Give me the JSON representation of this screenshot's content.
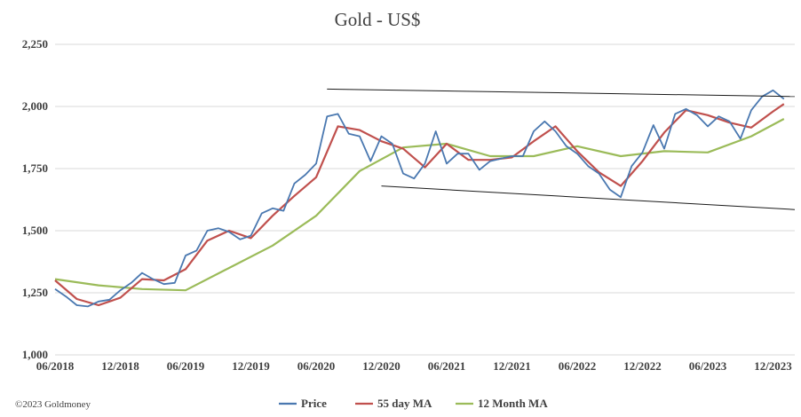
{
  "chart_data": {
    "type": "line",
    "title": "Gold - US$",
    "xlabel": "",
    "ylabel": "",
    "ylim": [
      1000,
      2250
    ],
    "y_ticks": [
      "1,000",
      "1,250",
      "1,500",
      "1,750",
      "2,000",
      "2,250"
    ],
    "x_tick_labels": [
      "06/2018",
      "12/2018",
      "06/2019",
      "12/2019",
      "06/2020",
      "12/2020",
      "06/2021",
      "12/2021",
      "06/2022",
      "12/2022",
      "06/2023",
      "12/2023"
    ],
    "x_range": [
      "2018-06",
      "2024-02"
    ],
    "grid": "horizontal",
    "legend_position": "bottom",
    "colors": {
      "price": "#4a78b0",
      "ma55": "#c0504d",
      "ma12m": "#9bbb59",
      "trendline": "#1a1a1a",
      "grid": "#d9d9d9"
    },
    "series": [
      {
        "name": "Price",
        "points": [
          [
            "2018-06",
            1265
          ],
          [
            "2018-07",
            1235
          ],
          [
            "2018-08",
            1200
          ],
          [
            "2018-09",
            1195
          ],
          [
            "2018-10",
            1215
          ],
          [
            "2018-11",
            1222
          ],
          [
            "2018-12",
            1260
          ],
          [
            "2019-01",
            1290
          ],
          [
            "2019-02",
            1330
          ],
          [
            "2019-03",
            1305
          ],
          [
            "2019-04",
            1285
          ],
          [
            "2019-05",
            1290
          ],
          [
            "2019-06",
            1400
          ],
          [
            "2019-07",
            1420
          ],
          [
            "2019-08",
            1500
          ],
          [
            "2019-09",
            1510
          ],
          [
            "2019-10",
            1495
          ],
          [
            "2019-11",
            1465
          ],
          [
            "2019-12",
            1480
          ],
          [
            "2020-01",
            1570
          ],
          [
            "2020-02",
            1590
          ],
          [
            "2020-03",
            1580
          ],
          [
            "2020-04",
            1690
          ],
          [
            "2020-05",
            1725
          ],
          [
            "2020-06",
            1770
          ],
          [
            "2020-07",
            1960
          ],
          [
            "2020-08",
            1970
          ],
          [
            "2020-09",
            1890
          ],
          [
            "2020-10",
            1880
          ],
          [
            "2020-11",
            1780
          ],
          [
            "2020-12",
            1880
          ],
          [
            "2021-01",
            1850
          ],
          [
            "2021-02",
            1730
          ],
          [
            "2021-03",
            1710
          ],
          [
            "2021-04",
            1770
          ],
          [
            "2021-05",
            1900
          ],
          [
            "2021-06",
            1770
          ],
          [
            "2021-07",
            1810
          ],
          [
            "2021-08",
            1810
          ],
          [
            "2021-09",
            1745
          ],
          [
            "2021-10",
            1780
          ],
          [
            "2021-11",
            1790
          ],
          [
            "2021-12",
            1800
          ],
          [
            "2022-01",
            1800
          ],
          [
            "2022-02",
            1900
          ],
          [
            "2022-03",
            1940
          ],
          [
            "2022-04",
            1900
          ],
          [
            "2022-05",
            1840
          ],
          [
            "2022-06",
            1810
          ],
          [
            "2022-07",
            1760
          ],
          [
            "2022-08",
            1730
          ],
          [
            "2022-09",
            1665
          ],
          [
            "2022-10",
            1635
          ],
          [
            "2022-11",
            1760
          ],
          [
            "2022-12",
            1815
          ],
          [
            "2023-01",
            1925
          ],
          [
            "2023-02",
            1830
          ],
          [
            "2023-03",
            1970
          ],
          [
            "2023-04",
            1990
          ],
          [
            "2023-05",
            1965
          ],
          [
            "2023-06",
            1920
          ],
          [
            "2023-07",
            1960
          ],
          [
            "2023-08",
            1940
          ],
          [
            "2023-09",
            1870
          ],
          [
            "2023-10",
            1985
          ],
          [
            "2023-11",
            2040
          ],
          [
            "2023-12",
            2065
          ],
          [
            "2024-01",
            2030
          ]
        ]
      },
      {
        "name": "55 day MA",
        "points": [
          [
            "2018-06",
            1300
          ],
          [
            "2018-08",
            1225
          ],
          [
            "2018-10",
            1200
          ],
          [
            "2018-12",
            1230
          ],
          [
            "2019-02",
            1305
          ],
          [
            "2019-04",
            1300
          ],
          [
            "2019-06",
            1345
          ],
          [
            "2019-08",
            1460
          ],
          [
            "2019-10",
            1500
          ],
          [
            "2019-12",
            1470
          ],
          [
            "2020-02",
            1560
          ],
          [
            "2020-04",
            1640
          ],
          [
            "2020-06",
            1715
          ],
          [
            "2020-08",
            1920
          ],
          [
            "2020-10",
            1905
          ],
          [
            "2020-12",
            1860
          ],
          [
            "2021-02",
            1830
          ],
          [
            "2021-04",
            1755
          ],
          [
            "2021-06",
            1850
          ],
          [
            "2021-08",
            1785
          ],
          [
            "2021-10",
            1785
          ],
          [
            "2021-12",
            1795
          ],
          [
            "2022-02",
            1860
          ],
          [
            "2022-04",
            1920
          ],
          [
            "2022-06",
            1820
          ],
          [
            "2022-08",
            1735
          ],
          [
            "2022-10",
            1680
          ],
          [
            "2022-12",
            1780
          ],
          [
            "2023-02",
            1895
          ],
          [
            "2023-04",
            1985
          ],
          [
            "2023-06",
            1965
          ],
          [
            "2023-08",
            1935
          ],
          [
            "2023-10",
            1915
          ],
          [
            "2023-12",
            1980
          ],
          [
            "2024-01",
            2010
          ]
        ]
      },
      {
        "name": "12 Month MA",
        "points": [
          [
            "2018-06",
            1305
          ],
          [
            "2018-10",
            1280
          ],
          [
            "2019-02",
            1265
          ],
          [
            "2019-06",
            1260
          ],
          [
            "2019-10",
            1350
          ],
          [
            "2020-02",
            1440
          ],
          [
            "2020-06",
            1560
          ],
          [
            "2020-10",
            1740
          ],
          [
            "2021-02",
            1835
          ],
          [
            "2021-06",
            1850
          ],
          [
            "2021-10",
            1800
          ],
          [
            "2022-02",
            1800
          ],
          [
            "2022-06",
            1840
          ],
          [
            "2022-10",
            1800
          ],
          [
            "2023-02",
            1820
          ],
          [
            "2023-06",
            1815
          ],
          [
            "2023-10",
            1880
          ],
          [
            "2024-01",
            1950
          ]
        ]
      }
    ],
    "trendlines": [
      {
        "points": [
          [
            "2020-07",
            2070
          ],
          [
            "2024-02",
            2040
          ]
        ]
      },
      {
        "points": [
          [
            "2020-12",
            1680
          ],
          [
            "2024-02",
            1585
          ]
        ]
      }
    ]
  },
  "legend": {
    "items": [
      {
        "label": "Price",
        "color": "#4a78b0"
      },
      {
        "label": "55 day MA",
        "color": "#c0504d"
      },
      {
        "label": "12 Month MA",
        "color": "#9bbb59"
      }
    ]
  },
  "footer": {
    "copyright": "©2023 Goldmoney"
  }
}
